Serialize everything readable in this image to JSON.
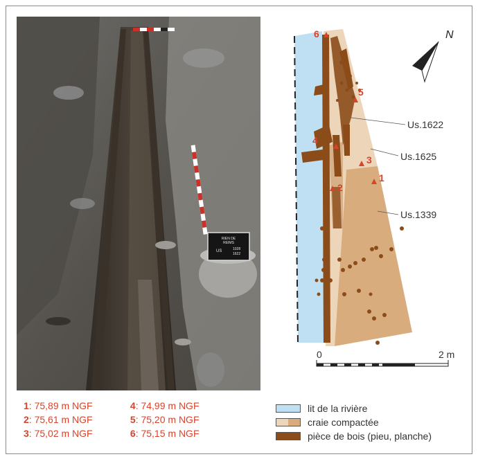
{
  "photo": {
    "sign_line1": "RIEN DE",
    "sign_line2": "REIMS",
    "sign_us_label": "US",
    "sign_us_1": "1028",
    "sign_us_2": "1622"
  },
  "plan": {
    "north_label": "N",
    "unit_labels": [
      "Us.1622",
      "Us.1625",
      "Us.1339"
    ],
    "point_numbers": [
      "1",
      "2",
      "3",
      "4",
      "5",
      "6"
    ],
    "scale_start": "0",
    "scale_end": "2 m"
  },
  "elevations": [
    {
      "num": "1",
      "value": ": 75,89 m NGF"
    },
    {
      "num": "2",
      "value": ": 75,61 m NGF"
    },
    {
      "num": "3",
      "value": ": 75,02 m NGF"
    },
    {
      "num": "4",
      "value": ": 74,99 m NGF"
    },
    {
      "num": "5",
      "value": ": 75,20 m NGF"
    },
    {
      "num": "6",
      "value": ": 75,15 m NGF"
    }
  ],
  "legend": [
    {
      "label": "lit de la rivière",
      "color": "#bfe0f3"
    },
    {
      "label": "craie compactée",
      "color": "#e5c9a7"
    },
    {
      "label": "pièce de bois (pieu, planche)",
      "color": "#8b4c1a"
    }
  ],
  "colors": {
    "river": "#bfe0f3",
    "chalk_light": "#ecd5b9",
    "chalk_dark": "#d9ac7d",
    "wood": "#8b4c1a",
    "accent_red": "#d8432b"
  }
}
